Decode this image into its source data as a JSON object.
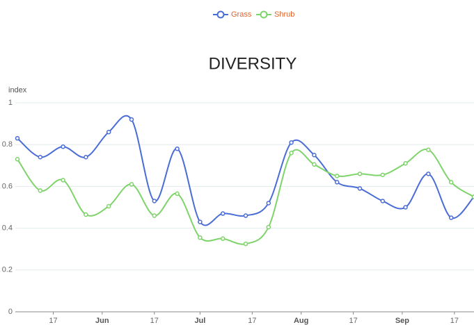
{
  "chart_data": {
    "type": "line",
    "title": "DIVERSITY",
    "y_label": "index",
    "x": [
      "05-06",
      "05-13",
      "05-20",
      "05-27",
      "06-03",
      "06-10",
      "06-17",
      "06-24",
      "07-01",
      "07-08",
      "07-15",
      "07-22",
      "07-29",
      "08-05",
      "08-12",
      "08-19",
      "08-26",
      "09-02",
      "09-09",
      "09-16",
      "09-23"
    ],
    "series": [
      {
        "name": "Grass",
        "color": "#4a6cd6",
        "values": [
          0.83,
          0.74,
          0.79,
          0.74,
          0.86,
          0.92,
          0.53,
          0.78,
          0.43,
          0.47,
          0.46,
          0.52,
          0.81,
          0.75,
          0.62,
          0.59,
          0.53,
          0.5,
          0.66,
          0.45,
          0.55
        ]
      },
      {
        "name": "Shrub",
        "color": "#7ed36a",
        "values": [
          0.73,
          0.58,
          0.63,
          0.465,
          0.505,
          0.61,
          0.46,
          0.565,
          0.355,
          0.35,
          0.325,
          0.405,
          0.76,
          0.705,
          0.65,
          0.66,
          0.655,
          0.71,
          0.775,
          0.62,
          0.55
        ]
      }
    ],
    "xlim": [
      "05-06",
      "09-23"
    ],
    "xticks": [
      {
        "value": "05-17",
        "label": "17"
      },
      {
        "value": "06-01",
        "label": "Jun"
      },
      {
        "value": "06-17",
        "label": "17"
      },
      {
        "value": "07-01",
        "label": "Jul"
      },
      {
        "value": "07-17",
        "label": "17"
      },
      {
        "value": "08-01",
        "label": "Aug"
      },
      {
        "value": "08-17",
        "label": "17"
      },
      {
        "value": "09-01",
        "label": "Sep"
      },
      {
        "value": "09-17",
        "label": "17"
      }
    ],
    "ylim": [
      0,
      1
    ],
    "yticks": [
      0,
      0.2,
      0.4,
      0.6,
      0.8,
      1
    ],
    "grid": true,
    "legend": "top"
  }
}
